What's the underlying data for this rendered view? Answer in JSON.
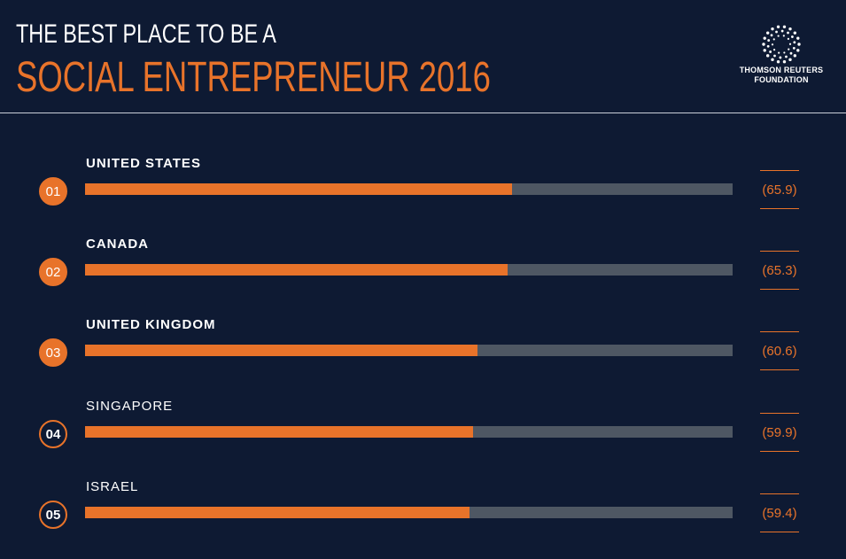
{
  "header": {
    "title_line1": "THE BEST PLACE TO BE A",
    "title_line2": "SOCIAL ENTREPRENEUR 2016"
  },
  "logo": {
    "line1": "THOMSON REUTERS",
    "line2": "FOUNDATION",
    "icon": "thomson-reuters-dot-logo"
  },
  "colors": {
    "background": "#0e1a33",
    "accent": "#e8732a",
    "track": "#4e5763"
  },
  "chart_data": {
    "type": "bar",
    "orientation": "horizontal",
    "scale_max": 100,
    "categories": [
      "UNITED STATES",
      "CANADA",
      "UNITED KINGDOM",
      "SINGAPORE",
      "ISRAEL"
    ],
    "ranks": [
      "01",
      "02",
      "03",
      "04",
      "05"
    ],
    "values": [
      65.9,
      65.3,
      60.6,
      59.9,
      59.4
    ],
    "value_labels": [
      "(65.9)",
      "(65.3)",
      "(60.6)",
      "(59.9)",
      "(59.4)"
    ]
  }
}
